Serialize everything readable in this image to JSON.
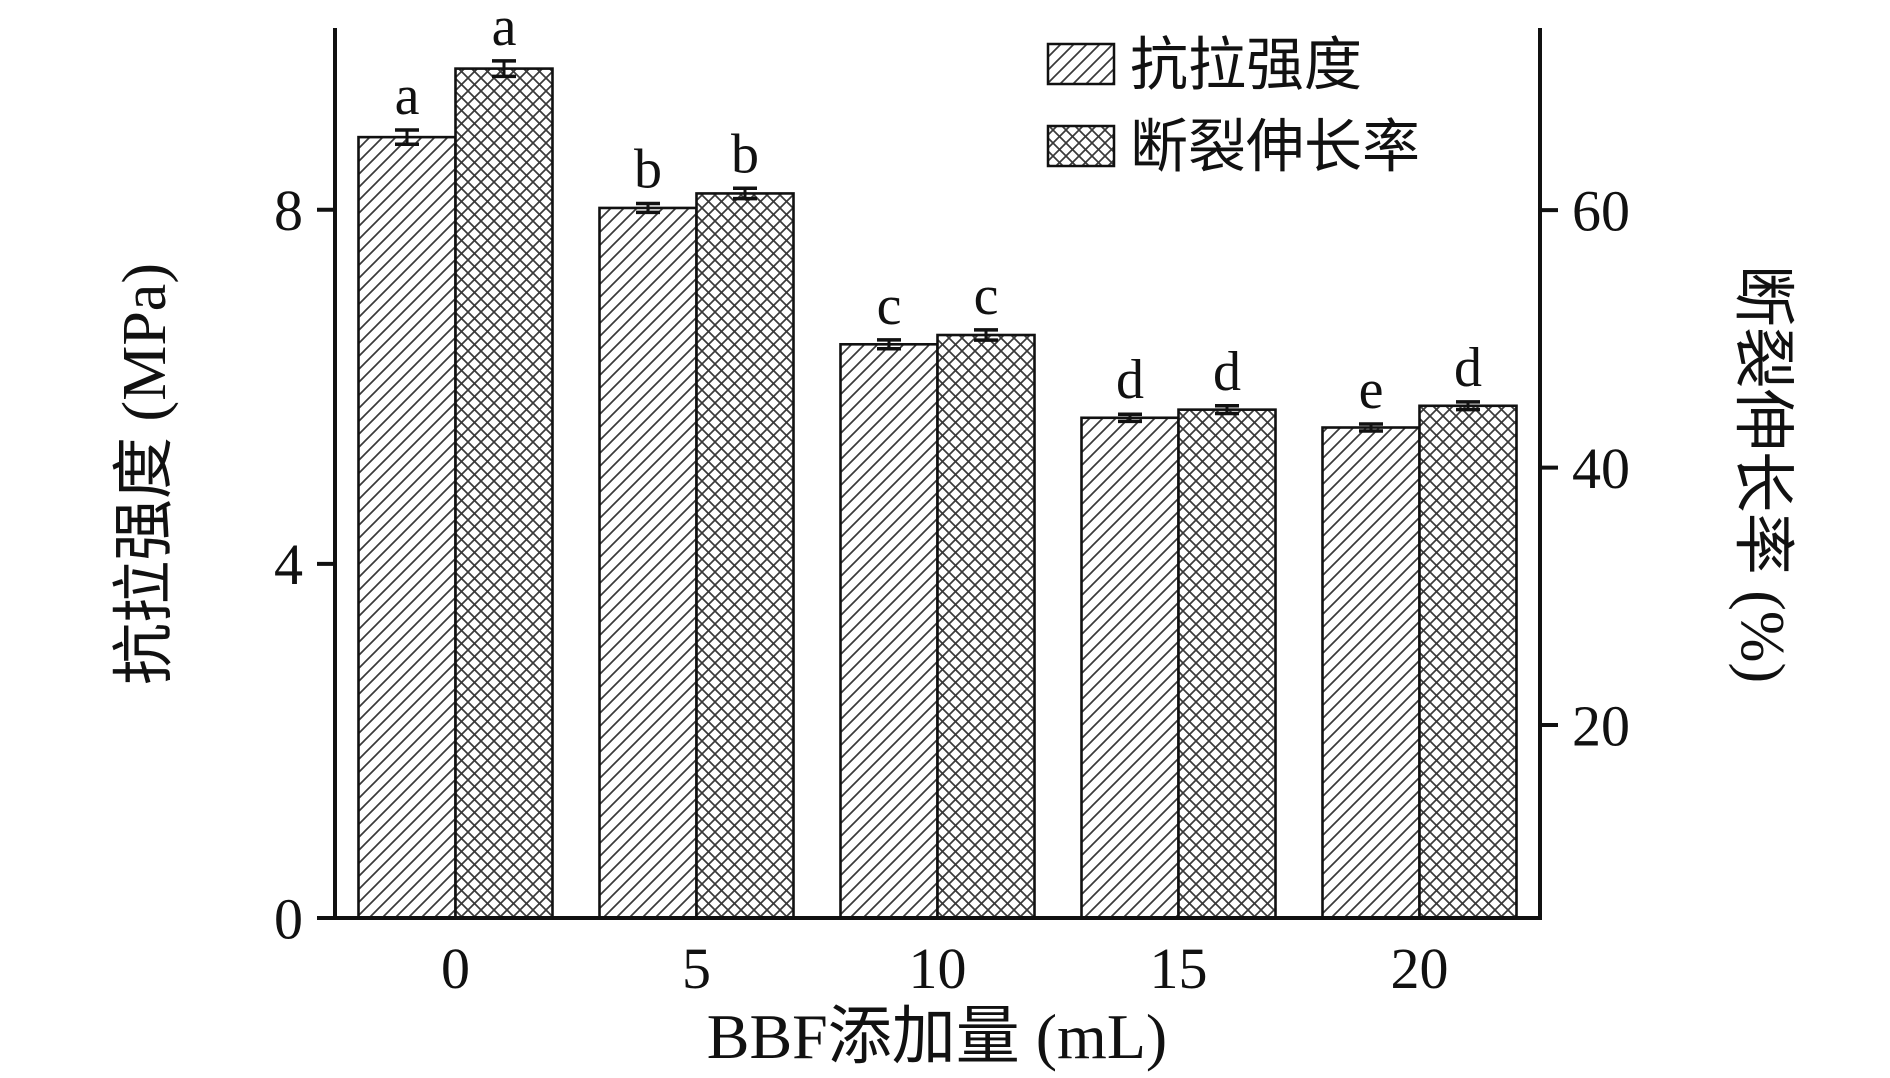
{
  "figure": {
    "background": "#ffffff",
    "ink": "#111111"
  },
  "chart_data": {
    "type": "bar",
    "categories": [
      "0",
      "5",
      "10",
      "15",
      "20"
    ],
    "xlabel": "BBF添加量 (mL)",
    "left_axis": {
      "label": "抗拉强度 (MPa)",
      "ticks": [
        0,
        4,
        8
      ],
      "min": 0,
      "max": 10.03
    },
    "right_axis": {
      "label": "断裂伸长率 (%)",
      "ticks": [
        20,
        40,
        60
      ],
      "min": 5,
      "max": 74
    },
    "grid": "off",
    "legend": {
      "position": "top-right",
      "entries": [
        "抗拉强度",
        "断裂伸长率"
      ]
    },
    "series": [
      {
        "name": "抗拉强度",
        "axis": "left",
        "pattern": "diagonal-hatch",
        "values": [
          8.82,
          8.02,
          6.48,
          5.65,
          5.54
        ],
        "errors": [
          0.08,
          0.05,
          0.05,
          0.04,
          0.04
        ],
        "letters": [
          "a",
          "b",
          "c",
          "d",
          "e"
        ]
      },
      {
        "name": "断裂伸长率",
        "axis": "right",
        "pattern": "cross-hatch",
        "values": [
          71.0,
          61.3,
          50.3,
          44.5,
          44.8
        ],
        "errors": [
          0.6,
          0.4,
          0.4,
          0.3,
          0.3
        ],
        "letters": [
          "a",
          "b",
          "c",
          "d",
          "d"
        ]
      }
    ]
  }
}
